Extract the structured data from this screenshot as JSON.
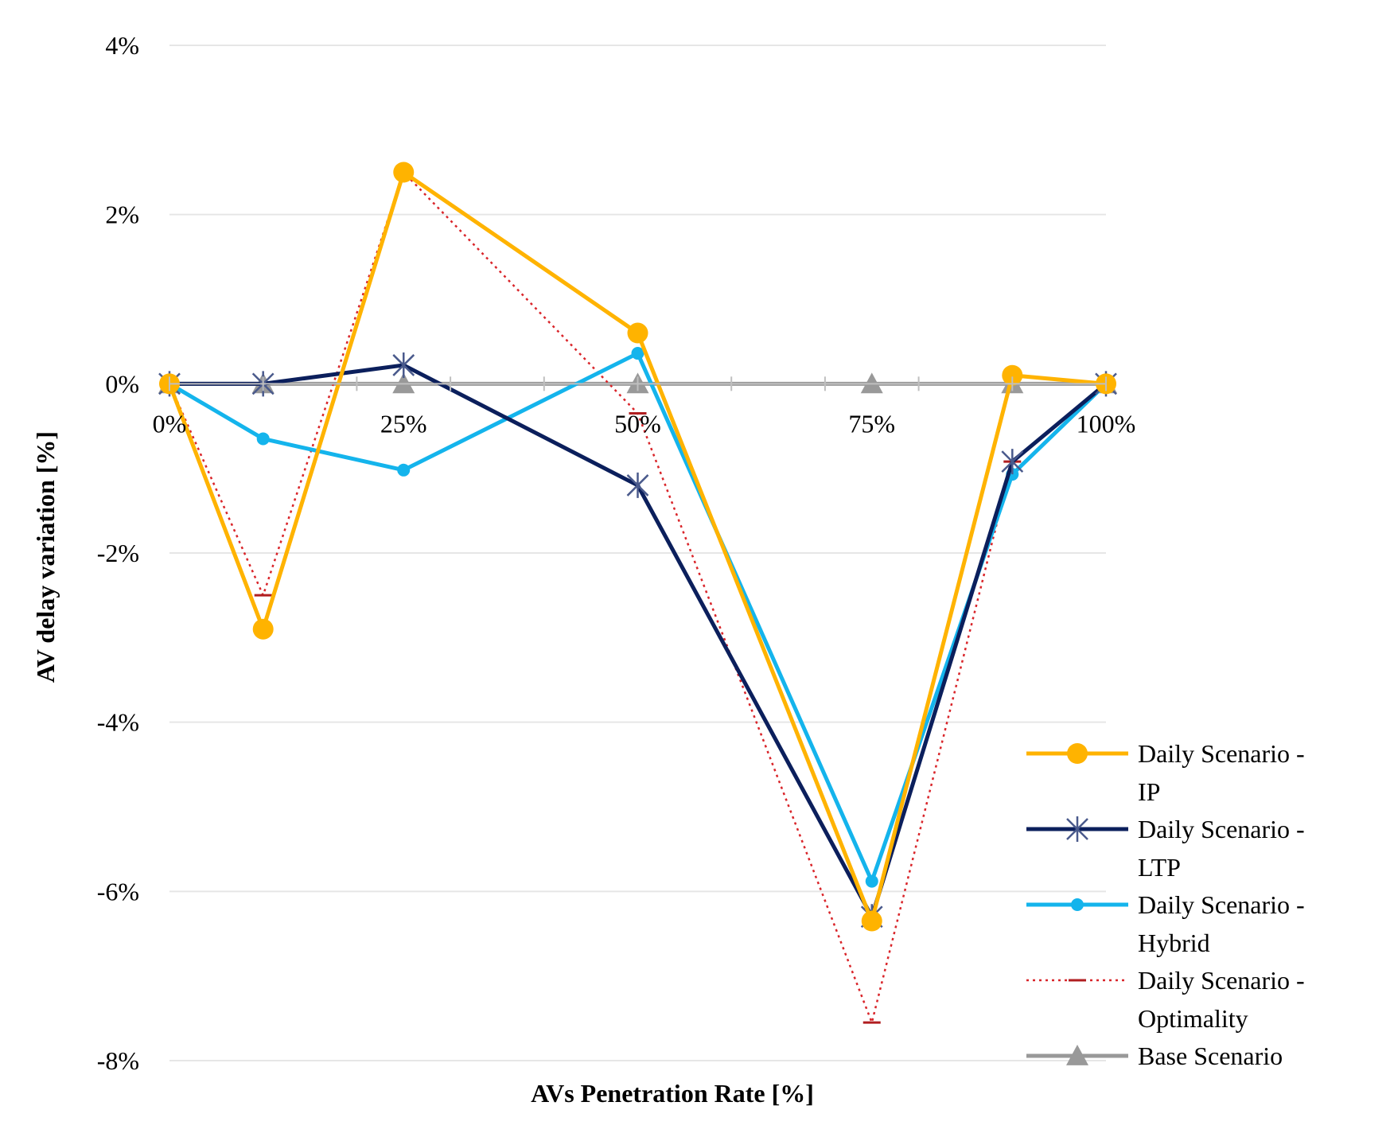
{
  "chart_data": {
    "type": "line",
    "title": "",
    "xlabel": "AVs Penetration Rate [%]",
    "ylabel": "AV delay variation [%]",
    "x": [
      0,
      10,
      25,
      50,
      75,
      90,
      100
    ],
    "x_tick_values": [
      0,
      25,
      50,
      75,
      100
    ],
    "x_tick_labels": [
      "0%",
      "25%",
      "50%",
      "75%",
      "100%"
    ],
    "x_minor_ticks": [
      0,
      10,
      20,
      30,
      40,
      50,
      60,
      70,
      80,
      90,
      100
    ],
    "xlim": [
      0,
      100
    ],
    "ylim": [
      -8,
      4
    ],
    "y_tick_values": [
      4,
      2,
      0,
      -2,
      -4,
      -6,
      -8
    ],
    "y_tick_labels": [
      "4%",
      "2%",
      "0%",
      "-2%",
      "-4%",
      "-6%",
      "-8%"
    ],
    "grid": true,
    "legend_position": "bottom-right",
    "series": [
      {
        "name": "Daily Scenario - IP",
        "legend_lines": [
          "Daily Scenario -",
          "IP"
        ],
        "values": [
          0,
          -2.9,
          2.5,
          0.6,
          -6.35,
          0.1,
          0
        ],
        "color": "#FFB300",
        "marker": "circle-large",
        "dash": "solid"
      },
      {
        "name": "Daily Scenario - LTP",
        "legend_lines": [
          "Daily Scenario -",
          "LTP"
        ],
        "values": [
          0,
          0,
          0.22,
          -1.2,
          -6.3,
          -0.92,
          0
        ],
        "color": "#0B1F5C",
        "marker": "star",
        "dash": "solid"
      },
      {
        "name": "Daily Scenario - Hybrid",
        "legend_lines": [
          "Daily Scenario -",
          "Hybrid"
        ],
        "values": [
          0,
          -0.65,
          -1.02,
          0.36,
          -5.88,
          -1.07,
          0
        ],
        "color": "#14B4EC",
        "marker": "circle-small",
        "dash": "solid"
      },
      {
        "name": "Daily Scenario - Optimality",
        "legend_lines": [
          "Daily Scenario -",
          "Optimality"
        ],
        "values": [
          0,
          -2.5,
          2.5,
          -0.35,
          -7.55,
          -0.92,
          0
        ],
        "color": "#D9252A",
        "marker": "dash",
        "dash": "dotted"
      },
      {
        "name": "Base Scenario",
        "legend_lines": [
          "Base Scenario"
        ],
        "values": [
          0,
          0,
          0,
          0,
          0,
          0,
          0
        ],
        "color": "#999999",
        "marker": "triangle",
        "dash": "solid"
      }
    ]
  }
}
